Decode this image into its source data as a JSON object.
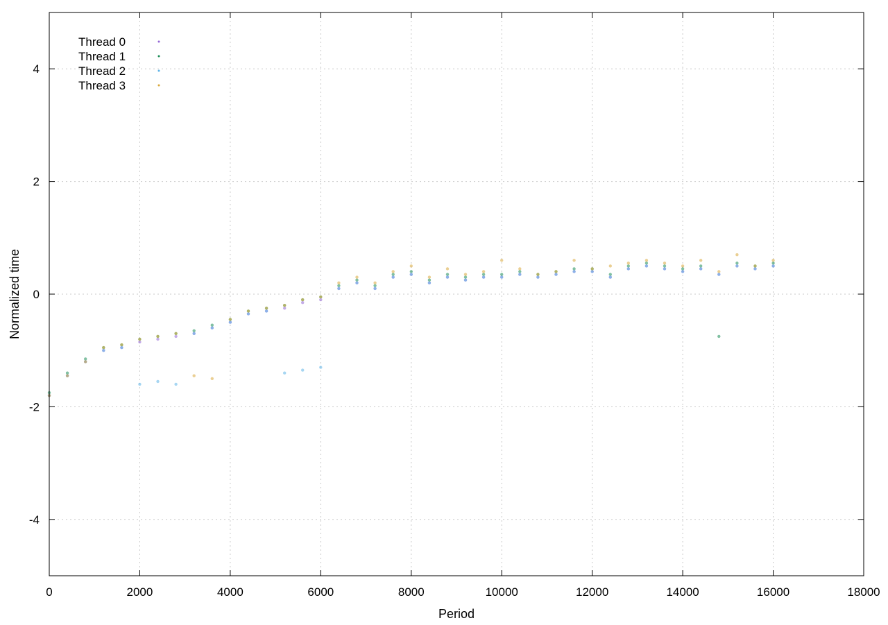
{
  "chart_data": {
    "type": "scatter",
    "title": "",
    "xlabel": "Period",
    "ylabel": "Normalized time",
    "xlim": [
      0,
      18000
    ],
    "ylim": [
      -5,
      5
    ],
    "xticks": [
      0,
      2000,
      4000,
      6000,
      8000,
      10000,
      12000,
      14000,
      16000,
      18000
    ],
    "yticks": [
      -4,
      -2,
      0,
      2,
      4
    ],
    "xtick_labels": [
      "0",
      "2000",
      "4000",
      "6000",
      "8000",
      "10000",
      "12000",
      "14000",
      "16000",
      "18000"
    ],
    "ytick_labels": [
      "-4",
      "-2",
      "0",
      "2",
      "4"
    ],
    "grid": true,
    "legend_position": "top-left",
    "series": [
      {
        "name": "Thread 0",
        "color": "#9467d6",
        "points": [
          [
            0,
            -1.8
          ],
          [
            400,
            -1.45
          ],
          [
            800,
            -1.2
          ],
          [
            1200,
            -1.0
          ],
          [
            1600,
            -0.95
          ],
          [
            2000,
            -0.85
          ],
          [
            2400,
            -0.8
          ],
          [
            2800,
            -0.75
          ],
          [
            3200,
            -0.7
          ],
          [
            3600,
            -0.6
          ],
          [
            4000,
            -0.5
          ],
          [
            4400,
            -0.35
          ],
          [
            4800,
            -0.3
          ],
          [
            5200,
            -0.25
          ],
          [
            5600,
            -0.15
          ],
          [
            6000,
            -0.1
          ],
          [
            6400,
            0.1
          ],
          [
            6800,
            0.2
          ],
          [
            7200,
            0.1
          ],
          [
            7600,
            0.3
          ],
          [
            8000,
            0.35
          ],
          [
            8400,
            0.2
          ],
          [
            8800,
            0.3
          ],
          [
            9200,
            0.25
          ],
          [
            9600,
            0.3
          ],
          [
            10000,
            0.3
          ],
          [
            10400,
            0.35
          ],
          [
            10800,
            0.3
          ],
          [
            11200,
            0.35
          ],
          [
            11600,
            0.4
          ],
          [
            12000,
            0.4
          ],
          [
            12400,
            0.3
          ],
          [
            12800,
            0.45
          ],
          [
            13200,
            0.5
          ],
          [
            13600,
            0.45
          ],
          [
            14000,
            0.4
          ],
          [
            14400,
            0.45
          ],
          [
            14800,
            0.35
          ],
          [
            15200,
            0.5
          ],
          [
            15600,
            0.45
          ],
          [
            16000,
            0.5
          ]
        ]
      },
      {
        "name": "Thread 1",
        "color": "#1a8c55",
        "points": [
          [
            0,
            -1.75
          ],
          [
            400,
            -1.4
          ],
          [
            800,
            -1.15
          ],
          [
            1200,
            -0.95
          ],
          [
            1600,
            -0.9
          ],
          [
            2000,
            -0.8
          ],
          [
            2400,
            -0.75
          ],
          [
            2800,
            -0.7
          ],
          [
            3200,
            -0.65
          ],
          [
            3600,
            -0.55
          ],
          [
            4000,
            -0.45
          ],
          [
            4400,
            -0.3
          ],
          [
            4800,
            -0.25
          ],
          [
            5200,
            -0.2
          ],
          [
            5600,
            -0.1
          ],
          [
            6000,
            -0.05
          ],
          [
            6400,
            0.15
          ],
          [
            6800,
            0.25
          ],
          [
            7200,
            0.15
          ],
          [
            7600,
            0.35
          ],
          [
            8000,
            0.4
          ],
          [
            8400,
            0.25
          ],
          [
            8800,
            0.35
          ],
          [
            9200,
            0.3
          ],
          [
            9600,
            0.35
          ],
          [
            10000,
            0.35
          ],
          [
            10400,
            0.4
          ],
          [
            10800,
            0.35
          ],
          [
            11200,
            0.4
          ],
          [
            11600,
            0.45
          ],
          [
            12000,
            0.45
          ],
          [
            12400,
            0.35
          ],
          [
            12800,
            0.5
          ],
          [
            13200,
            0.55
          ],
          [
            13600,
            0.5
          ],
          [
            14000,
            0.45
          ],
          [
            14400,
            0.5
          ],
          [
            14800,
            -0.75
          ],
          [
            15200,
            0.55
          ],
          [
            15600,
            0.5
          ],
          [
            16000,
            0.55
          ]
        ]
      },
      {
        "name": "Thread 2",
        "color": "#5fb4e8",
        "points": [
          [
            0,
            -1.8
          ],
          [
            400,
            -1.45
          ],
          [
            800,
            -1.2
          ],
          [
            1200,
            -1.0
          ],
          [
            1600,
            -0.95
          ],
          [
            2000,
            -1.6
          ],
          [
            2400,
            -1.55
          ],
          [
            2800,
            -1.6
          ],
          [
            3200,
            -0.7
          ],
          [
            3600,
            -0.6
          ],
          [
            4000,
            -0.5
          ],
          [
            4400,
            -0.35
          ],
          [
            4800,
            -0.3
          ],
          [
            5200,
            -1.4
          ],
          [
            5600,
            -1.35
          ],
          [
            6000,
            -1.3
          ],
          [
            6400,
            0.1
          ],
          [
            6800,
            0.2
          ],
          [
            7200,
            0.1
          ],
          [
            7600,
            0.3
          ],
          [
            8000,
            0.35
          ],
          [
            8400,
            0.2
          ],
          [
            8800,
            0.3
          ],
          [
            9200,
            0.25
          ],
          [
            9600,
            0.3
          ],
          [
            10000,
            0.3
          ],
          [
            10400,
            0.35
          ],
          [
            10800,
            0.3
          ],
          [
            11200,
            0.35
          ],
          [
            11600,
            0.4
          ],
          [
            12000,
            0.4
          ],
          [
            12400,
            0.3
          ],
          [
            12800,
            0.45
          ],
          [
            13200,
            0.5
          ],
          [
            13600,
            0.45
          ],
          [
            14000,
            0.4
          ],
          [
            14400,
            0.45
          ],
          [
            14800,
            0.35
          ],
          [
            15200,
            0.5
          ],
          [
            15600,
            0.45
          ],
          [
            16000,
            0.5
          ]
        ]
      },
      {
        "name": "Thread 3",
        "color": "#d9a83a",
        "points": [
          [
            0,
            -1.8
          ],
          [
            400,
            -1.45
          ],
          [
            800,
            -1.2
          ],
          [
            1200,
            -0.95
          ],
          [
            1600,
            -0.9
          ],
          [
            2000,
            -0.8
          ],
          [
            2400,
            -0.75
          ],
          [
            2800,
            -0.7
          ],
          [
            3200,
            -1.45
          ],
          [
            3600,
            -1.5
          ],
          [
            4000,
            -0.45
          ],
          [
            4400,
            -0.3
          ],
          [
            4800,
            -0.25
          ],
          [
            5200,
            -0.2
          ],
          [
            5600,
            -0.1
          ],
          [
            6000,
            -0.05
          ],
          [
            6400,
            0.2
          ],
          [
            6800,
            0.3
          ],
          [
            7200,
            0.2
          ],
          [
            7600,
            0.4
          ],
          [
            8000,
            0.5
          ],
          [
            8400,
            0.3
          ],
          [
            8800,
            0.45
          ],
          [
            9200,
            0.35
          ],
          [
            9600,
            0.4
          ],
          [
            10000,
            0.6
          ],
          [
            10400,
            0.45
          ],
          [
            10800,
            0.35
          ],
          [
            11200,
            0.4
          ],
          [
            11600,
            0.6
          ],
          [
            12000,
            0.45
          ],
          [
            12400,
            0.5
          ],
          [
            12800,
            0.55
          ],
          [
            13200,
            0.6
          ],
          [
            13600,
            0.55
          ],
          [
            14000,
            0.5
          ],
          [
            14400,
            0.6
          ],
          [
            14800,
            0.4
          ],
          [
            15200,
            0.7
          ],
          [
            15600,
            0.5
          ],
          [
            16000,
            0.6
          ]
        ]
      }
    ]
  }
}
